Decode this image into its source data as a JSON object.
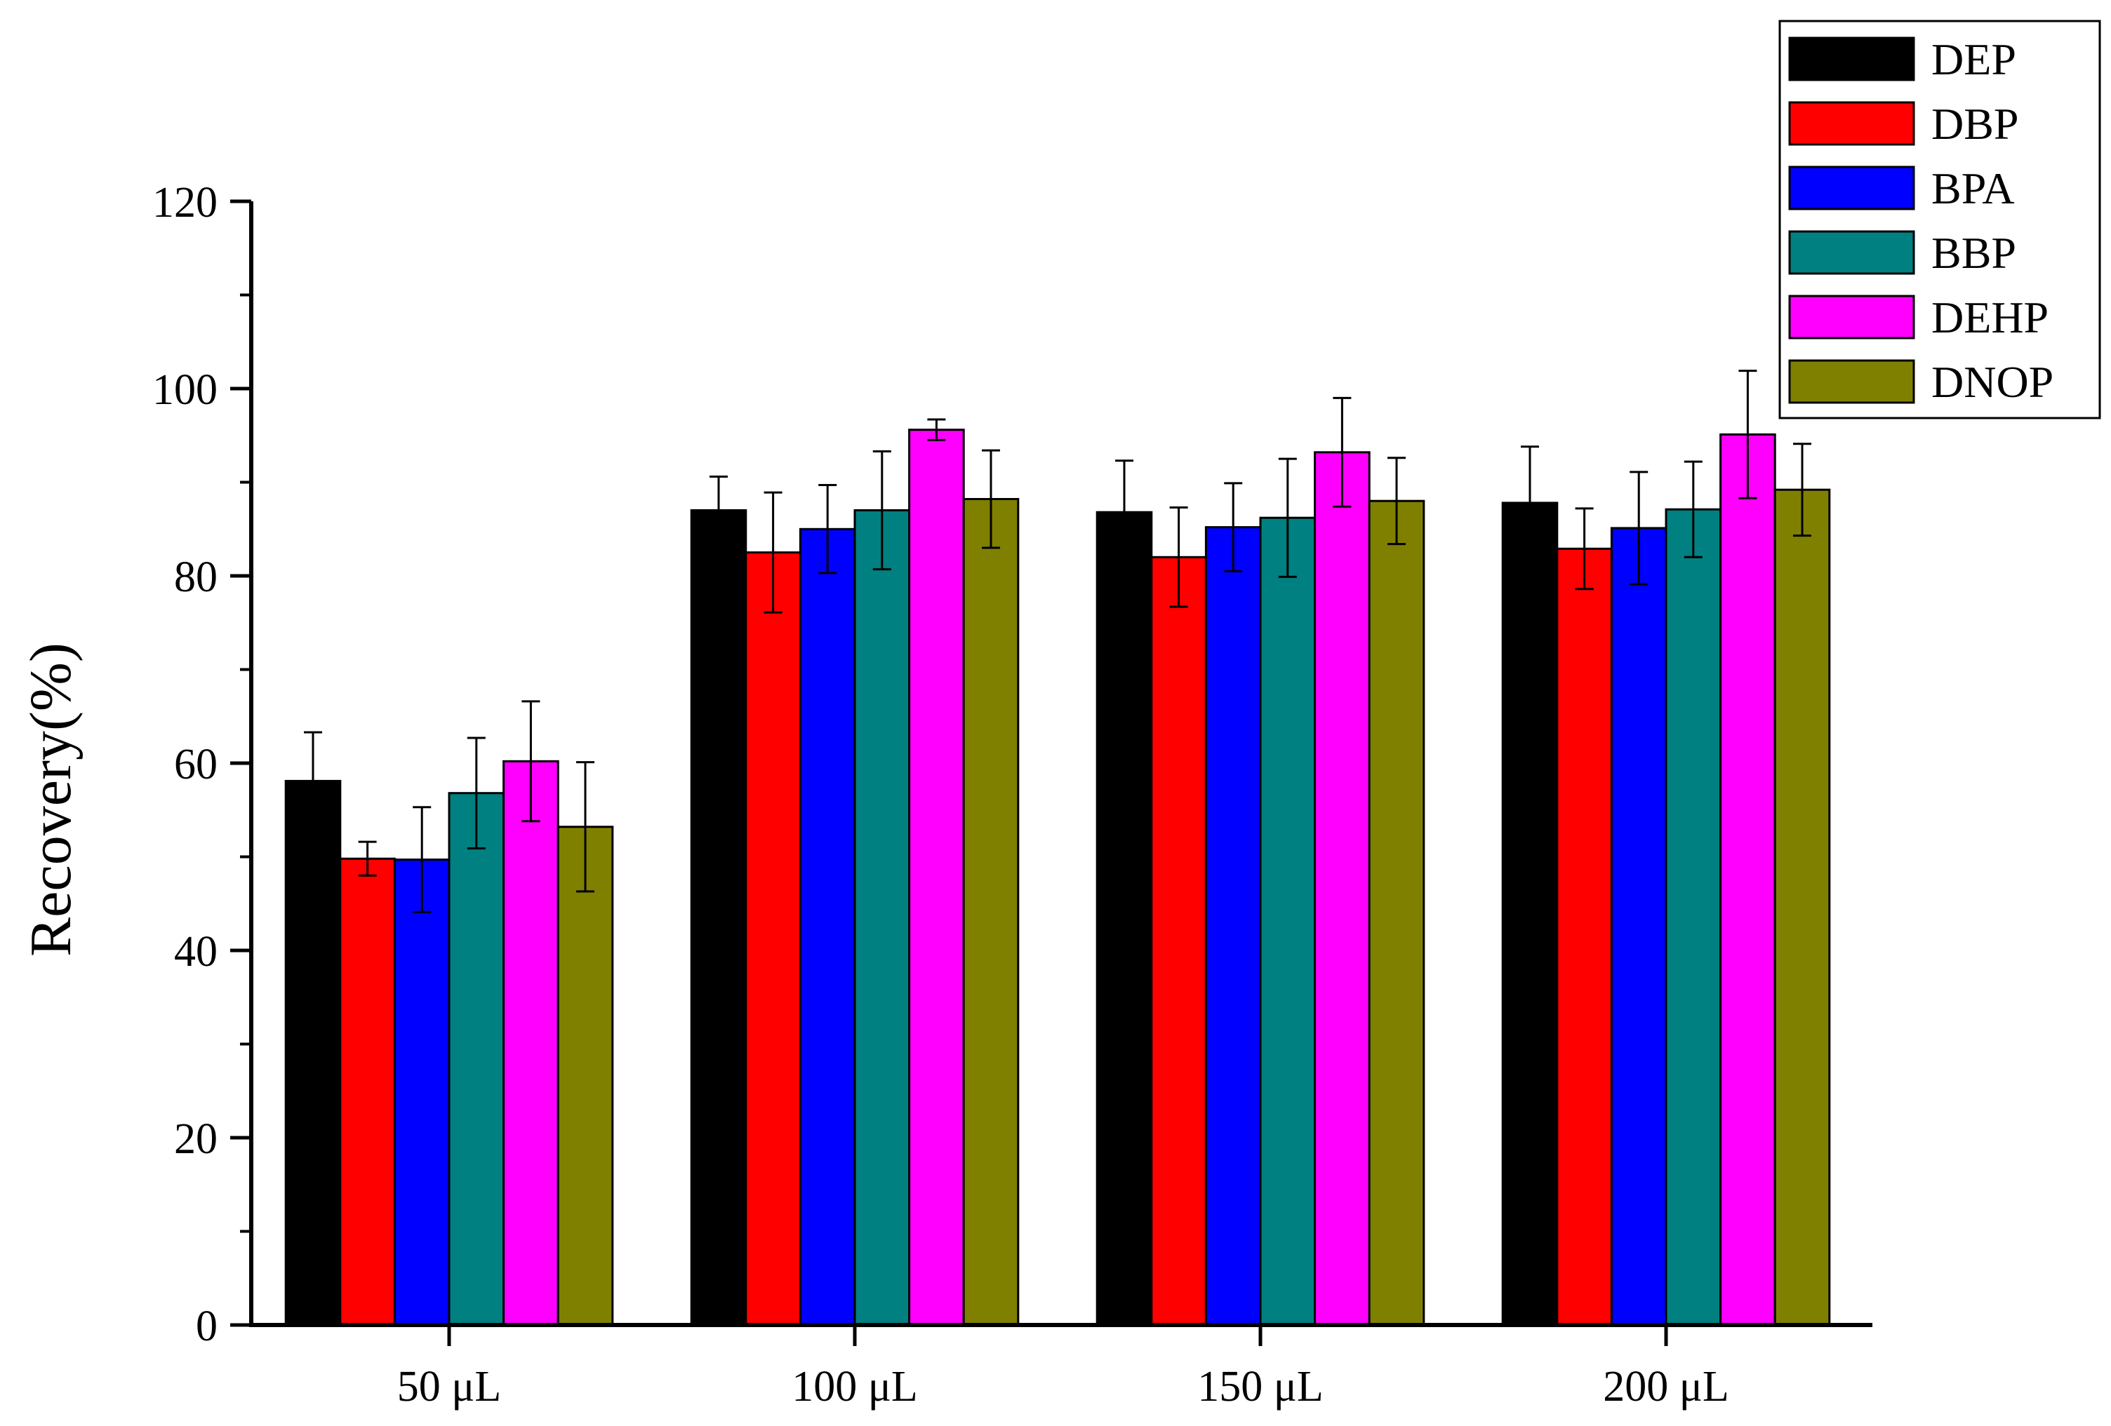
{
  "chart_data": {
    "type": "bar",
    "title": "",
    "xlabel": "",
    "ylabel": "Recovery(%)",
    "ylim": [
      0,
      120
    ],
    "yticks": [
      0,
      20,
      40,
      60,
      80,
      100,
      120
    ],
    "grid": false,
    "legend_position": "top-right",
    "error_bars": true,
    "categories": [
      "50 μL",
      "100 μL",
      "150 μL",
      "200 μL"
    ],
    "series": [
      {
        "name": "DEP",
        "color": "#000000",
        "values": [
          58.1,
          87.0,
          86.8,
          87.8
        ],
        "errors": [
          5.2,
          3.6,
          5.5,
          6.0
        ]
      },
      {
        "name": "DBP",
        "color": "#ff0000",
        "values": [
          49.8,
          82.5,
          82.0,
          82.9
        ],
        "errors": [
          1.8,
          6.4,
          5.3,
          4.3
        ]
      },
      {
        "name": "BPA",
        "color": "#0000ff",
        "values": [
          49.7,
          85.0,
          85.2,
          85.1
        ],
        "errors": [
          5.6,
          4.7,
          4.7,
          6.0
        ]
      },
      {
        "name": "BBP",
        "color": "#008080",
        "values": [
          56.8,
          87.0,
          86.2,
          87.1
        ],
        "errors": [
          5.9,
          6.3,
          6.3,
          5.1
        ]
      },
      {
        "name": "DEHP",
        "color": "#ff00ff",
        "values": [
          60.2,
          95.6,
          93.2,
          95.1
        ],
        "errors": [
          6.4,
          1.1,
          5.8,
          6.8
        ]
      },
      {
        "name": "DNOP",
        "color": "#808000",
        "values": [
          53.2,
          88.2,
          88.0,
          89.2
        ],
        "errors": [
          6.9,
          5.2,
          4.6,
          4.9
        ]
      }
    ]
  }
}
